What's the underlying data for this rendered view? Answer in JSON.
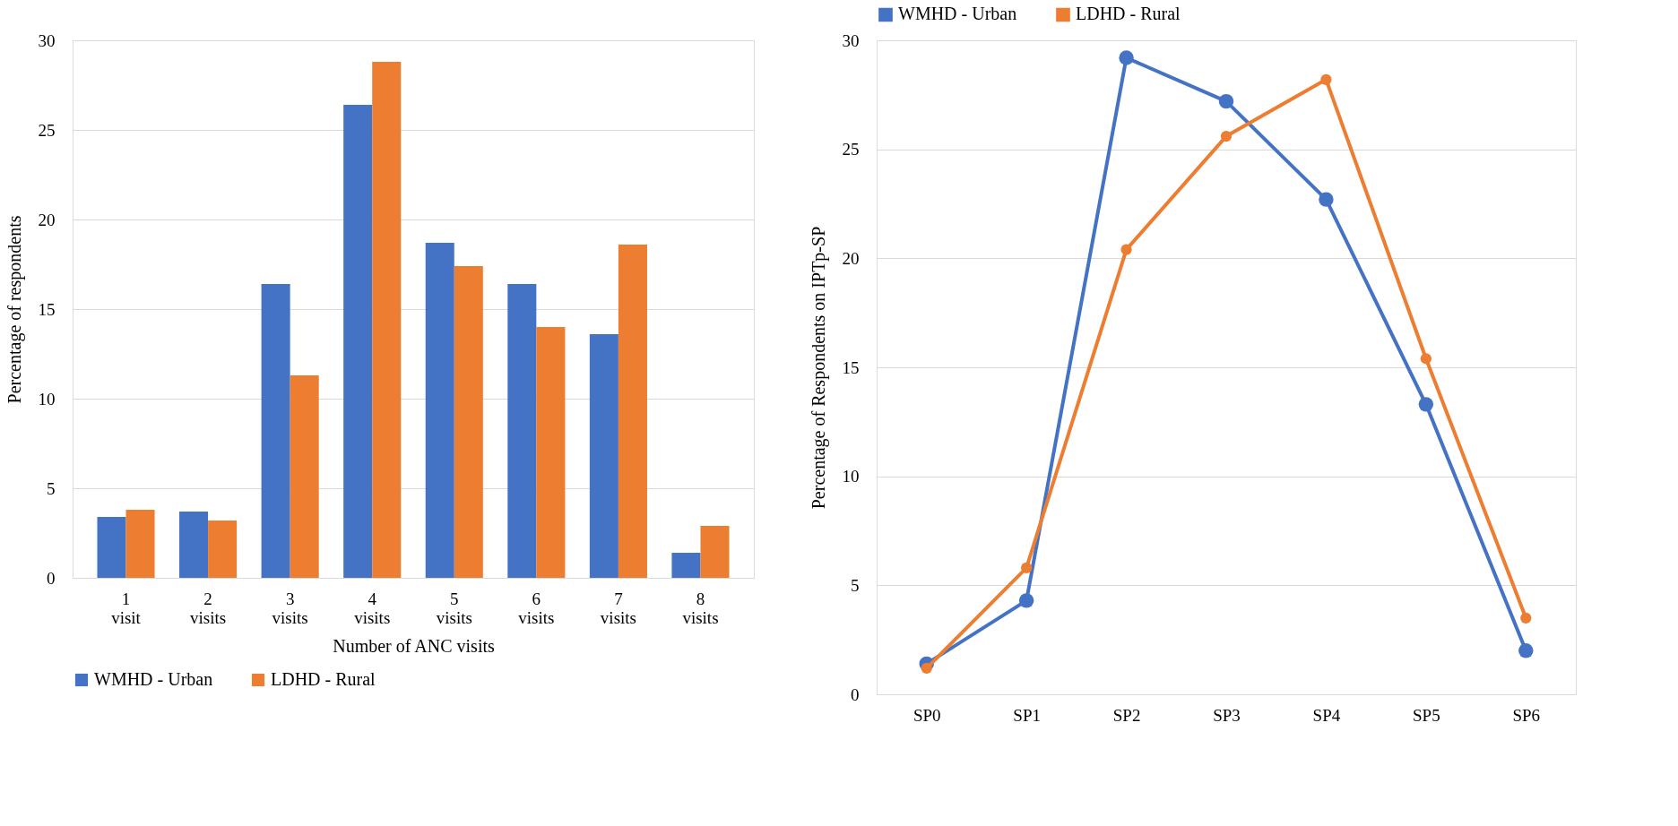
{
  "chart_data": [
    {
      "type": "bar",
      "xlabel": "Number of ANC visits",
      "ylabel": "Percentage of respondents",
      "categories": [
        "1 visit",
        "2 visits",
        "3 visits",
        "4 visits",
        "5 visits",
        "6 visits",
        "7 visits",
        "8 visits"
      ],
      "series": [
        {
          "name": "WMHD - Urban",
          "color": "#4472c4",
          "values": [
            3.4,
            3.7,
            16.4,
            26.4,
            18.7,
            16.4,
            13.6,
            1.4
          ]
        },
        {
          "name": "LDHD - Rural",
          "color": "#ed7d31",
          "values": [
            3.8,
            3.2,
            11.3,
            28.8,
            17.4,
            14.0,
            18.6,
            2.9
          ]
        }
      ],
      "ylim": [
        0,
        30
      ],
      "yticks": [
        0,
        5,
        10,
        15,
        20,
        25,
        30
      ],
      "grid": "y",
      "legend": "bottom"
    },
    {
      "type": "line",
      "ylabel": "Percentage of Respondents on IPTp-SP",
      "categories": [
        "SP0",
        "SP1",
        "SP2",
        "SP3",
        "SP4",
        "SP5",
        "SP6"
      ],
      "series": [
        {
          "name": "WMHD - Urban",
          "color": "#4472c4",
          "values": [
            1.4,
            4.3,
            29.2,
            27.2,
            22.7,
            13.3,
            2.0
          ]
        },
        {
          "name": "LDHD - Rural",
          "color": "#ed7d31",
          "values": [
            1.2,
            5.8,
            20.4,
            25.6,
            28.2,
            15.4,
            3.5
          ]
        }
      ],
      "ylim": [
        0,
        30
      ],
      "yticks": [
        0,
        5,
        10,
        15,
        20,
        25,
        30
      ],
      "grid": "y",
      "legend": "top",
      "marker": "circle",
      "line_style": "solid"
    }
  ]
}
